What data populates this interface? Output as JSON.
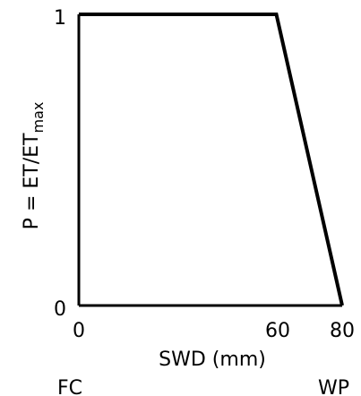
{
  "chart_data": {
    "type": "line",
    "x": [
      0,
      60,
      80
    ],
    "y": [
      1,
      1,
      0
    ],
    "xlim": [
      0,
      80
    ],
    "ylim": [
      0,
      1
    ],
    "x_ticks": [
      "0",
      "60",
      "80"
    ],
    "y_ticks": [
      "0",
      "1"
    ],
    "xlabel": "SWD (mm)",
    "ylabel_main": "P = ET/ET",
    "ylabel_sub": "max",
    "annotations": {
      "left_below_axis": "FC",
      "right_below_axis": "WP"
    },
    "grid": false,
    "line_color": "#000000"
  }
}
